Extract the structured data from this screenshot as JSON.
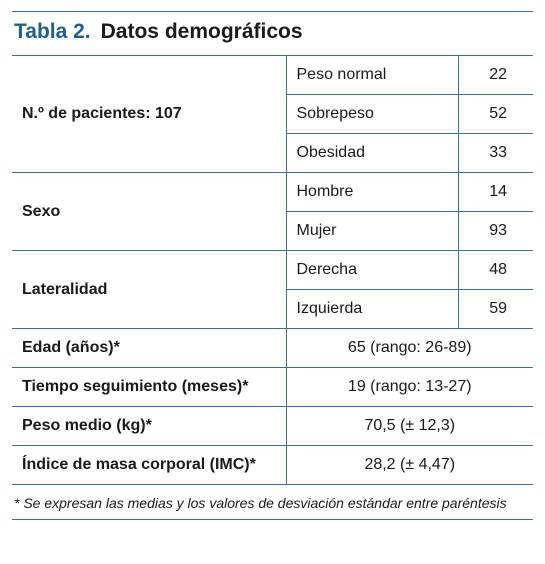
{
  "title": {
    "label": "Tabla 2.",
    "text": "Datos demográficos"
  },
  "groups": [
    {
      "label": "N.º de pacientes: 107",
      "rows": [
        {
          "name": "Peso normal",
          "value": 22
        },
        {
          "name": "Sobrepeso",
          "value": 52
        },
        {
          "name": "Obesidad",
          "value": 33
        }
      ]
    },
    {
      "label": "Sexo",
      "rows": [
        {
          "name": "Hombre",
          "value": 14
        },
        {
          "name": "Mujer",
          "value": 93
        }
      ]
    },
    {
      "label": "Lateralidad",
      "rows": [
        {
          "name": "Derecha",
          "value": 48
        },
        {
          "name": "Izquierda",
          "value": 59
        }
      ]
    }
  ],
  "summary": [
    {
      "label": "Edad (años)*",
      "value": "65 (rango: 26-89)"
    },
    {
      "label": "Tiempo seguimiento (meses)*",
      "value": "19 (rango: 13-27)"
    },
    {
      "label": "Peso medio (kg)*",
      "value": "70,5 (± 12,3)"
    },
    {
      "label": "Índice de masa corporal (IMC)*",
      "value": "28,2 (± 4,47)"
    }
  ],
  "footnote": "* Se expresan las medias y los valores de desviación estándar entre paréntesis"
}
